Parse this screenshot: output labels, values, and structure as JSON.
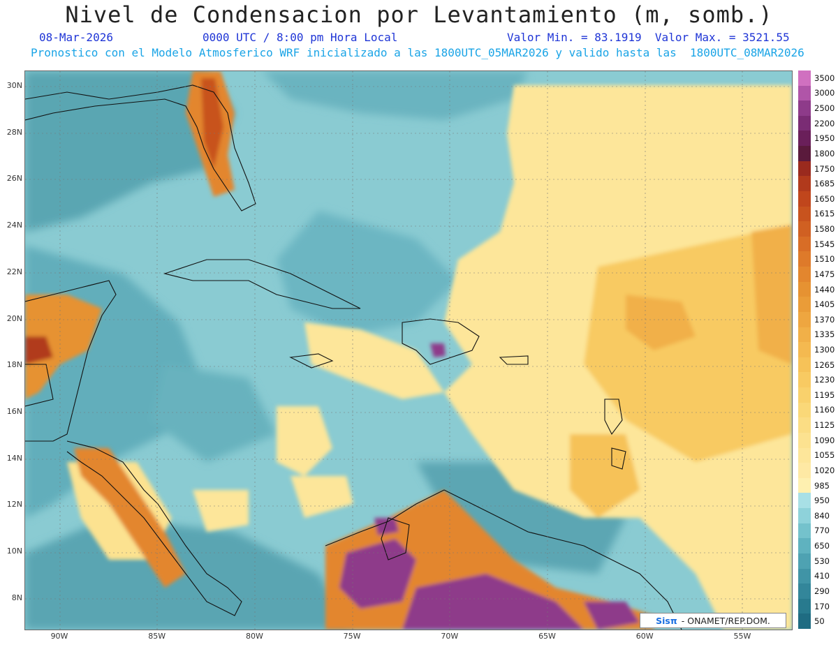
{
  "header": {
    "title": "Nivel de Condensacion por Levantamiento (m, somb.)",
    "date": "08-Mar-2026",
    "time": "0000 UTC / 8:00 pm Hora Local",
    "minmax": "Valor Min. = 83.1919  Valor Max. = 3521.55",
    "model_info": "Pronostico con el Modelo Atmosferico WRF inicializado a las 1800UTC_05MAR2026 y valido hasta las  1800UTC_08MAR2026"
  },
  "axes": {
    "lat_labels": [
      "30N",
      "28N",
      "26N",
      "24N",
      "22N",
      "20N",
      "18N",
      "16N",
      "14N",
      "12N",
      "10N",
      "8N"
    ],
    "lon_labels": [
      "90W",
      "85W",
      "80W",
      "75W",
      "70W",
      "65W",
      "60W",
      "55W"
    ]
  },
  "legend": {
    "labels": [
      "3500",
      "3000",
      "2500",
      "2200",
      "1950",
      "1800",
      "1750",
      "1685",
      "1650",
      "1615",
      "1580",
      "1545",
      "1510",
      "1475",
      "1440",
      "1405",
      "1370",
      "1335",
      "1300",
      "1265",
      "1230",
      "1195",
      "1160",
      "1125",
      "1090",
      "1055",
      "1020",
      "985",
      "950",
      "840",
      "770",
      "650",
      "530",
      "410",
      "290",
      "170",
      "50"
    ],
    "colors": [
      "#d070c0",
      "#b055a8",
      "#8e3b8a",
      "#7a2c74",
      "#6a1f5a",
      "#5a1a3c",
      "#9a2a1e",
      "#b13a1c",
      "#c0461c",
      "#c8531e",
      "#d06022",
      "#d86d26",
      "#de7a2a",
      "#e3862e",
      "#e69232",
      "#ea9c38",
      "#ee a640",
      "#f1b048",
      "#f4b950",
      "#f6c258",
      "#f8ca62",
      "#f9d16c",
      "#fad878",
      "#fbdd84",
      "#fce290",
      "#fde69a",
      "#fee9a4",
      "#fef0b0",
      "#a8e0e6",
      "#8ed2da",
      "#74c2cc",
      "#5fb2bf",
      "#4ea2b2",
      "#4094a6",
      "#33869a",
      "#287a8e",
      "#1f6c82"
    ],
    "palette_note": ""
  },
  "brand": {
    "logo": "Sisπ",
    "text": "- ONAMET/REP.DOM."
  }
}
